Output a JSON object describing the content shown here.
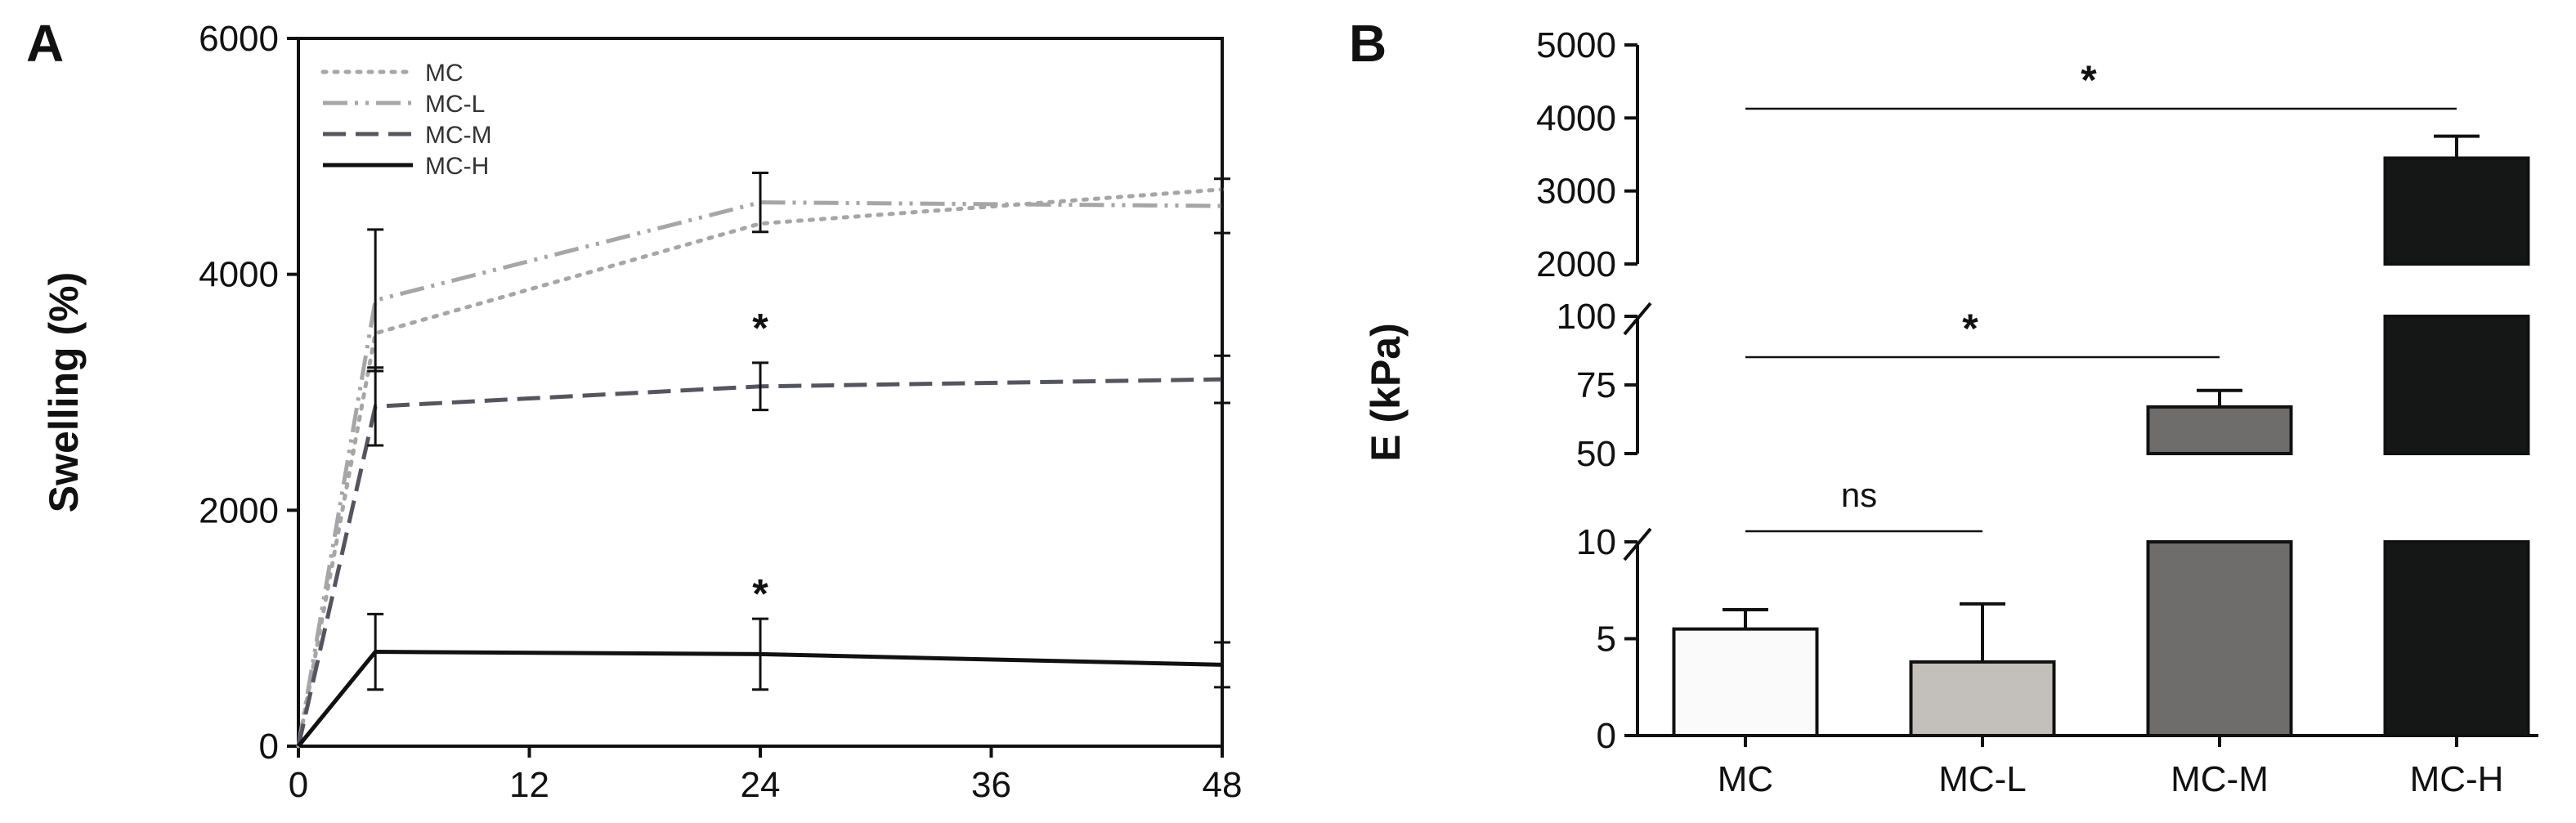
{
  "chart_data": [
    {
      "panel": "A",
      "type": "line",
      "xlabel": "",
      "ylabel": "Swelling (%)",
      "xlim": [
        0,
        48
      ],
      "ylim": [
        0,
        6000
      ],
      "x_ticks": [
        "0",
        "12",
        "24",
        "36",
        "48"
      ],
      "y_ticks": [
        "0",
        "2000",
        "4000",
        "6000"
      ],
      "legend_position": "top-left",
      "x": [
        0,
        4,
        24,
        48
      ],
      "series": [
        {
          "name": "MC",
          "values": [
            0,
            3500,
            4430,
            4720
          ],
          "errors": [
            0,
            0,
            0,
            0
          ],
          "style": "dotted",
          "color": "#a6a6a6"
        },
        {
          "name": "MC-L",
          "values": [
            0,
            3780,
            4610,
            4580
          ],
          "errors": [
            0,
            600,
            250,
            230
          ],
          "style": "dash-dot",
          "color": "#a6a6a6"
        },
        {
          "name": "MC-M",
          "values": [
            0,
            2880,
            3050,
            3110
          ],
          "errors": [
            0,
            330,
            200,
            200
          ],
          "style": "dashed",
          "color": "#555560"
        },
        {
          "name": "MC-H",
          "values": [
            0,
            800,
            780,
            690
          ],
          "errors": [
            0,
            320,
            300,
            190
          ],
          "style": "solid",
          "color": "#111111"
        }
      ],
      "annotations": [
        {
          "text": "*",
          "x": 24,
          "y": 3550
        },
        {
          "text": "*",
          "x": 24,
          "y": 1300
        }
      ]
    },
    {
      "panel": "B",
      "type": "bar",
      "xlabel": "",
      "ylabel": "E (kPa)",
      "categories": [
        "MC",
        "MC-L",
        "MC-M",
        "MC-H"
      ],
      "values": [
        5.5,
        3.8,
        67,
        3450
      ],
      "errors": [
        1.0,
        3.0,
        6,
        300
      ],
      "colors": [
        "#fafafa",
        "#c3bfbb",
        "#6f6c6c",
        "#151716"
      ],
      "broken_axis_segments": [
        {
          "range": [
            0,
            10
          ],
          "ticks": [
            "0",
            "5",
            "10"
          ]
        },
        {
          "range": [
            50,
            100
          ],
          "ticks": [
            "50",
            "75",
            "100"
          ]
        },
        {
          "range": [
            2000,
            5000
          ],
          "ticks": [
            "2000",
            "3000",
            "4000",
            "5000"
          ]
        }
      ],
      "significance": [
        {
          "label": "ns",
          "from": "MC",
          "to": "MC-L"
        },
        {
          "label": "*",
          "from": "MC",
          "to": "MC-M"
        },
        {
          "label": "*",
          "from": "MC",
          "to": "MC-H"
        }
      ]
    }
  ]
}
